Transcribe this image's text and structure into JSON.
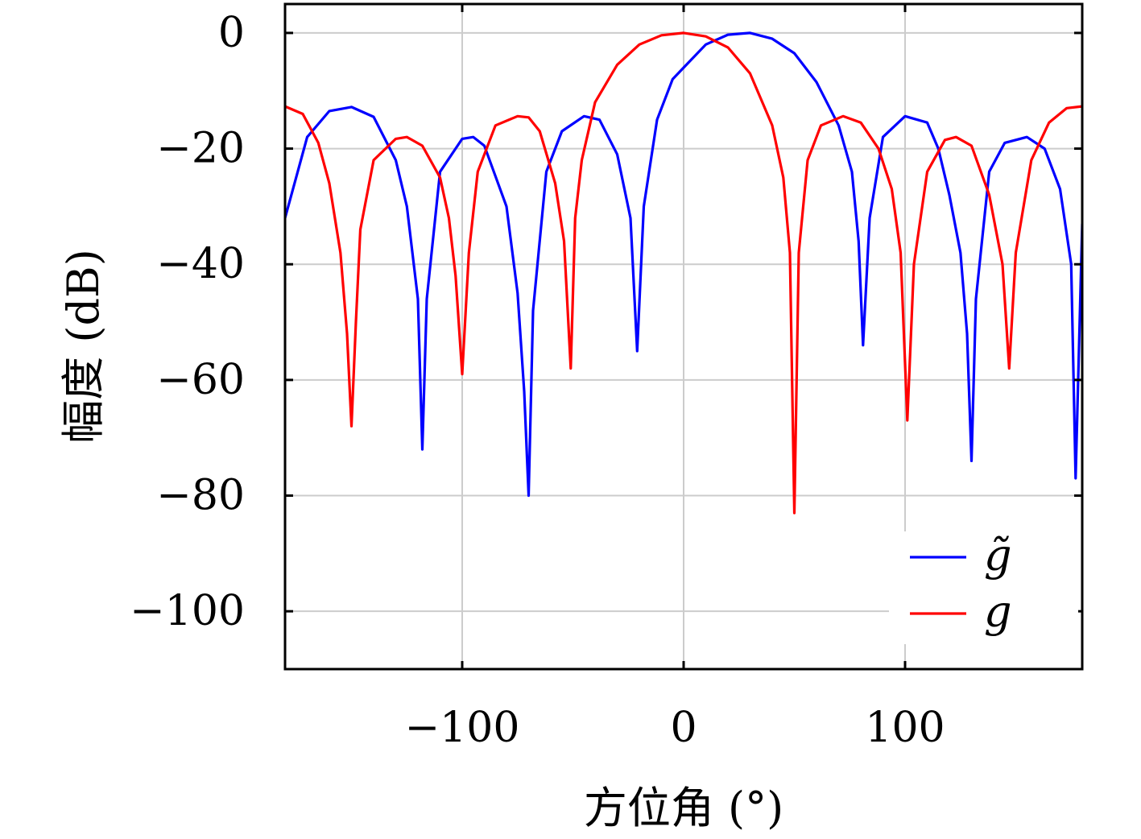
{
  "chart_data": {
    "type": "line",
    "title": "",
    "xlabel": "方位角 (°)",
    "ylabel": "幅度 (dB)",
    "xlim": [
      -180,
      180
    ],
    "ylim": [
      -110,
      5
    ],
    "xticks": [
      -100,
      0,
      100
    ],
    "yticks": [
      0,
      -20,
      -40,
      -60,
      -80,
      -100
    ],
    "xtick_labels": [
      "−100",
      "0",
      "100"
    ],
    "ytick_labels": [
      "0",
      "−20",
      "−40",
      "−60",
      "−80",
      "−100"
    ],
    "grid": true,
    "legend_position": "bottom-right",
    "series": [
      {
        "name": "g̃",
        "color": "#0000ff",
        "x": [
          -180,
          -170,
          -160,
          -150,
          -140,
          -130,
          -125,
          -120,
          -118,
          -116,
          -110,
          -100,
          -95,
          -90,
          -80,
          -75,
          -72,
          -70,
          -68,
          -62,
          -55,
          -45,
          -38,
          -30,
          -24,
          -21,
          -18,
          -12,
          -5,
          0,
          10,
          20,
          30,
          40,
          50,
          60,
          70,
          76,
          79,
          81,
          84,
          90,
          100,
          110,
          115,
          120,
          125,
          128,
          130,
          132,
          138,
          145,
          155,
          163,
          170,
          175,
          177,
          180
        ],
        "y": [
          -32,
          -18,
          -13.5,
          -12.8,
          -14.5,
          -22,
          -30,
          -46,
          -72,
          -46,
          -24,
          -18.3,
          -18,
          -19.5,
          -30,
          -45,
          -62,
          -80,
          -48,
          -24,
          -17,
          -14.4,
          -15,
          -21,
          -32,
          -55,
          -30,
          -15,
          -8,
          -6,
          -2,
          -0.3,
          0,
          -1,
          -3.5,
          -8.5,
          -16,
          -24,
          -36,
          -54,
          -32,
          -18,
          -14.4,
          -15.5,
          -20,
          -28,
          -38,
          -52,
          -74,
          -46,
          -24,
          -19,
          -18,
          -20,
          -27,
          -40,
          -77,
          -33
        ]
      },
      {
        "name": "g",
        "color": "#ff0000",
        "x": [
          -180,
          -172,
          -165,
          -160,
          -155,
          -152,
          -150,
          -148,
          -146,
          -140,
          -130,
          -125,
          -118,
          -110,
          -106,
          -103,
          -100,
          -97,
          -93,
          -85,
          -75,
          -70,
          -65,
          -58,
          -54,
          -51,
          -49,
          -46,
          -40,
          -30,
          -20,
          -10,
          0,
          10,
          20,
          30,
          40,
          45,
          48,
          50,
          52,
          56,
          62,
          72,
          80,
          88,
          94,
          98,
          101,
          104,
          110,
          118,
          123,
          130,
          138,
          144,
          147,
          150,
          157,
          165,
          173,
          180
        ],
        "y": [
          -12.7,
          -14,
          -19,
          -26,
          -38,
          -52,
          -68,
          -50,
          -34,
          -22,
          -18.3,
          -18,
          -19.5,
          -25,
          -32,
          -42,
          -59,
          -38,
          -24,
          -16,
          -14.4,
          -14.6,
          -17,
          -26,
          -36,
          -58,
          -32,
          -22,
          -12,
          -5.5,
          -2,
          -0.4,
          0,
          -0.6,
          -2.5,
          -7,
          -16,
          -25,
          -38,
          -83,
          -38,
          -22,
          -16,
          -14.4,
          -15.5,
          -20,
          -27,
          -38,
          -67,
          -40,
          -24,
          -18.5,
          -18,
          -19.5,
          -28,
          -40,
          -58,
          -38,
          -22,
          -15.5,
          -13,
          -12.7
        ]
      }
    ]
  }
}
